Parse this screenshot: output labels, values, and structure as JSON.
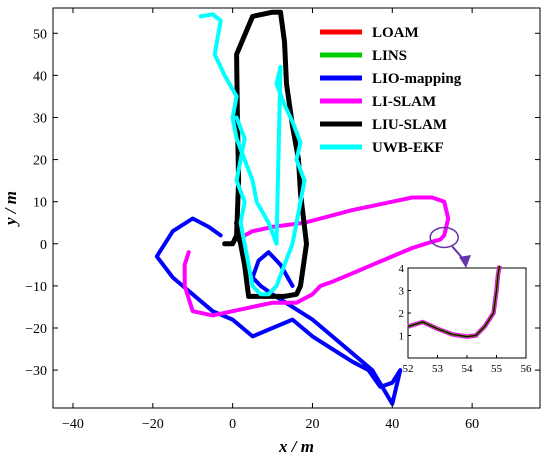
{
  "chart_data": {
    "type": "line",
    "xlabel": "x / m",
    "ylabel": "y / m",
    "xlim": [
      -45,
      77
    ],
    "ylim": [
      -39,
      56
    ],
    "xticks": [
      "−40",
      "−20",
      "0",
      "20",
      "40",
      "60"
    ],
    "xtick_values": [
      -40,
      -20,
      0,
      20,
      40,
      60
    ],
    "yticks": [
      "−30",
      "−20",
      "−10",
      "0",
      "10",
      "20",
      "30",
      "40",
      "50"
    ],
    "ytick_values": [
      -30,
      -20,
      -10,
      0,
      10,
      20,
      30,
      40,
      50
    ],
    "legend_position": "top-right",
    "series": [
      {
        "name": "LOAM",
        "color": "#ff0000",
        "x": [
          -2,
          0,
          1,
          1.5,
          1.2,
          1,
          5,
          10,
          12,
          13,
          13.5,
          15,
          16.5,
          17,
          18.5,
          17,
          16,
          13,
          8,
          4,
          3,
          2,
          1.5,
          1
        ],
        "y": [
          0,
          0,
          2,
          15,
          30,
          45,
          54,
          55,
          55,
          48,
          38,
          28,
          20,
          12,
          0,
          -10,
          -12,
          -12.5,
          -12.5,
          -12.5,
          -5,
          0,
          2,
          5
        ]
      },
      {
        "name": "LINS",
        "color": "#00cc00",
        "x": [
          -2,
          0,
          1,
          1.5,
          1.2,
          1,
          5,
          10,
          12,
          13,
          13.5,
          15,
          16.5,
          17,
          18.5,
          17,
          16,
          13,
          8,
          4,
          3,
          2,
          1.5,
          1
        ],
        "y": [
          0,
          0,
          2,
          15,
          30,
          45,
          54,
          55,
          55,
          48,
          38,
          28,
          20,
          12,
          0,
          -10,
          -12,
          -12.5,
          -12.5,
          -12.5,
          -5,
          0,
          2,
          5
        ]
      },
      {
        "name": "LIO-mapping",
        "color": "#0000ff",
        "x": [
          -3,
          -6,
          -10,
          -15,
          -19,
          -15,
          -10,
          -5,
          0,
          5,
          10,
          15,
          20,
          25,
          30,
          34,
          37,
          40,
          42,
          40,
          35,
          30,
          25,
          20,
          15,
          10,
          7,
          5,
          6.5,
          9,
          12,
          15
        ],
        "y": [
          2,
          4,
          6,
          3,
          -3,
          -8,
          -12,
          -16,
          -18,
          -22,
          -20,
          -18,
          -22,
          -25,
          -28,
          -30,
          -34,
          -33,
          -30,
          -38,
          -30,
          -26,
          -22,
          -18,
          -15,
          -12,
          -10,
          -8,
          -4,
          -2,
          -5,
          -10
        ]
      },
      {
        "name": "LI-SLAM",
        "color": "#ff00ff",
        "x": [
          1,
          5,
          10,
          18,
          22,
          26,
          30,
          35,
          40,
          45,
          50,
          53,
          54,
          53,
          52,
          50,
          45,
          40,
          35,
          30,
          25,
          22,
          20,
          18,
          16,
          10,
          5,
          0,
          -5,
          -10,
          -12,
          -12,
          -11
        ],
        "y": [
          1,
          3,
          4,
          5,
          6,
          7,
          8,
          9,
          10,
          11,
          11,
          10,
          6,
          2,
          1,
          0.5,
          -1,
          -3,
          -5,
          -7,
          -9,
          -10,
          -12,
          -13,
          -14,
          -14,
          -15,
          -16,
          -17,
          -16,
          -10,
          -5,
          -2
        ]
      },
      {
        "name": "LIU-SLAM",
        "color": "#000000",
        "x": [
          -2,
          0,
          1,
          1.5,
          1.2,
          1,
          5,
          10,
          12,
          13,
          13.5,
          15,
          16.5,
          17,
          18.5,
          17,
          16,
          13,
          8,
          4,
          3,
          2,
          1.5,
          1
        ],
        "y": [
          0,
          0,
          2,
          15,
          30,
          45,
          54,
          55,
          55,
          48,
          38,
          28,
          20,
          12,
          0,
          -10,
          -12,
          -12.5,
          -12.5,
          -12.5,
          -5,
          0,
          2,
          5
        ]
      },
      {
        "name": "UWB-EKF",
        "color": "#00ffff",
        "x": [
          -8,
          -5,
          -3,
          -4.5,
          -2,
          1,
          0,
          1,
          3,
          5,
          6,
          9,
          11,
          12,
          11,
          13,
          15,
          17,
          16,
          18,
          17,
          16,
          15,
          13,
          11,
          9,
          7,
          5,
          4,
          3,
          2,
          3,
          1,
          2,
          3,
          1
        ],
        "y": [
          54,
          54.5,
          53,
          45,
          40,
          35,
          30,
          25,
          20,
          15,
          10,
          5,
          0,
          42,
          38,
          33,
          29,
          24,
          20,
          15,
          10,
          5,
          0,
          -5,
          -10,
          -12,
          -12,
          -10,
          -5,
          0,
          5,
          10,
          15,
          20,
          25,
          30
        ]
      }
    ],
    "inset": {
      "xlim": [
        52,
        56
      ],
      "ylim": [
        0,
        4
      ],
      "xticks": [
        "52",
        "53",
        "54",
        "55",
        "56"
      ],
      "xtick_values": [
        52,
        53,
        54,
        55,
        56
      ],
      "yticks": [
        "1",
        "2",
        "3",
        "4"
      ],
      "ytick_values": [
        1,
        2,
        3,
        4
      ],
      "x": [
        52,
        52.5,
        53,
        53.5,
        54,
        54.3,
        54.6,
        54.9,
        55,
        55.05,
        55.1
      ],
      "y": [
        1.4,
        1.6,
        1.3,
        1.05,
        0.95,
        1.0,
        1.4,
        2.0,
        3.0,
        3.7,
        4.1
      ]
    },
    "grid": false
  }
}
